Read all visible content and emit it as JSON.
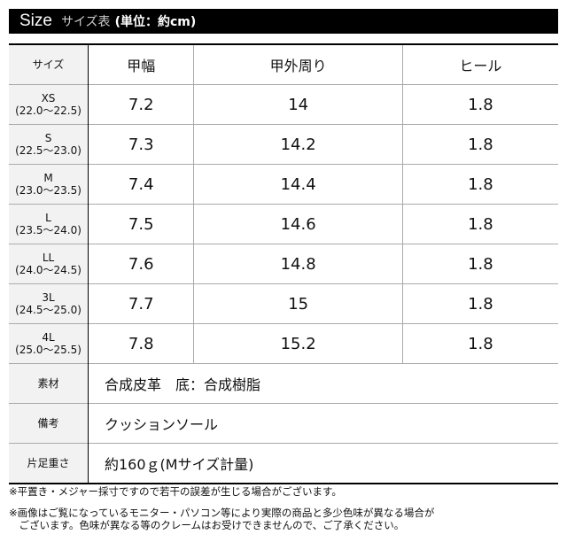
{
  "title": {
    "main": "Size",
    "sub": "サイズ表",
    "unit": "(単位：約cm)"
  },
  "table": {
    "headers": [
      "サイズ",
      "甲幅",
      "甲外周り",
      "ヒール"
    ],
    "rows": [
      {
        "size": "XS",
        "range": "(22.0～22.5)",
        "width": "7.2",
        "girth": "14",
        "heel": "1.8"
      },
      {
        "size": "S",
        "range": "(22.5～23.0)",
        "width": "7.3",
        "girth": "14.2",
        "heel": "1.8"
      },
      {
        "size": "M",
        "range": "(23.0～23.5)",
        "width": "7.4",
        "girth": "14.4",
        "heel": "1.8"
      },
      {
        "size": "L",
        "range": "(23.5～24.0)",
        "width": "7.5",
        "girth": "14.6",
        "heel": "1.8"
      },
      {
        "size": "LL",
        "range": "(24.0～24.5)",
        "width": "7.6",
        "girth": "14.8",
        "heel": "1.8"
      },
      {
        "size": "3L",
        "range": "(24.5～25.0)",
        "width": "7.7",
        "girth": "15",
        "heel": "1.8"
      },
      {
        "size": "4L",
        "range": "(25.0～25.5)",
        "width": "7.8",
        "girth": "15.2",
        "heel": "1.8"
      }
    ]
  },
  "info": [
    {
      "label": "素材",
      "value": "合成皮革　底：合成樹脂"
    },
    {
      "label": "備考",
      "value": "クッションソール"
    },
    {
      "label": "片足重さ",
      "value": "約160ｇ(Mサイズ計量)"
    }
  ],
  "notes": [
    "※平置き・メジャー採寸ですので若干の誤差が生じる場合がございます。",
    "※画像はご覧になっているモニター・パソコン等により実際の商品と多少色味が異なる場合が",
    "　ございます。色味が異なる等のクレームはお受けできませんので、ご了承ください。"
  ]
}
